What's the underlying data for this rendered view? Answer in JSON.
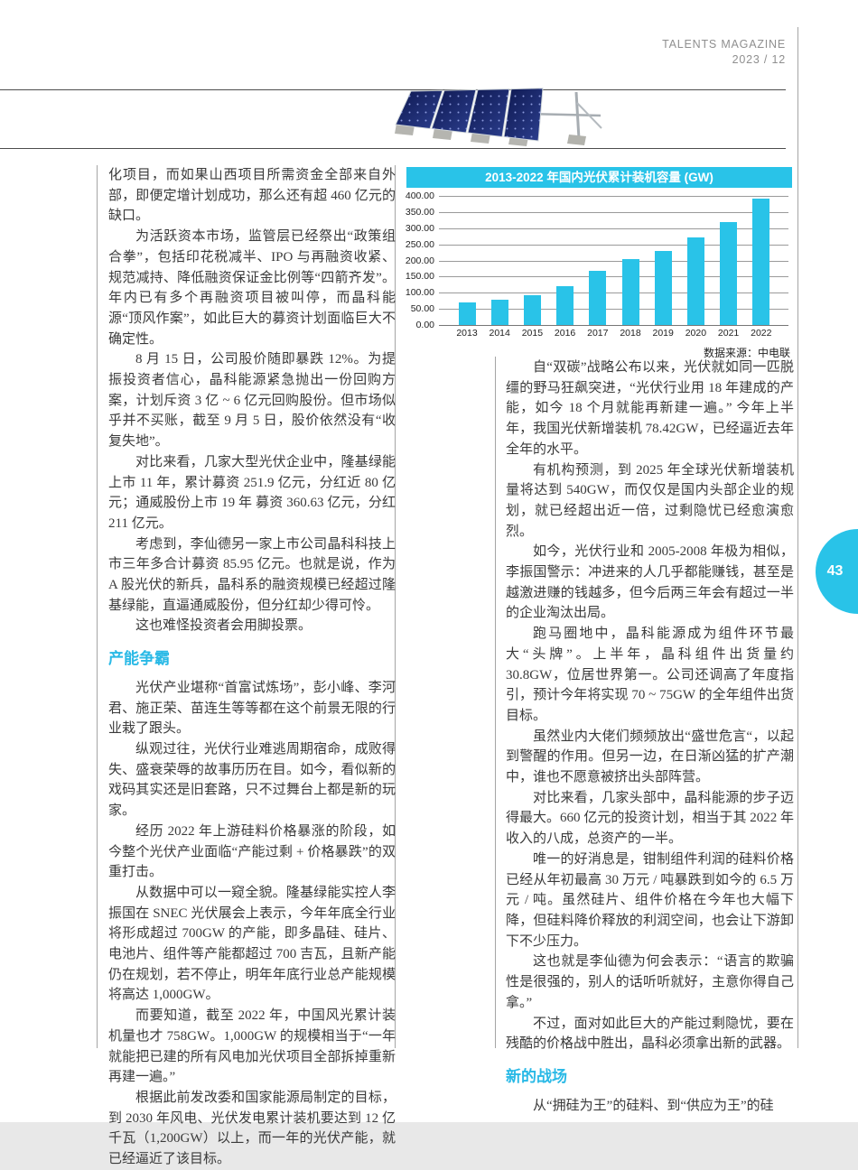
{
  "page": {
    "number": "43"
  },
  "header": {
    "magazine": "TALENTS MAGAZINE",
    "issue": "2023 / 12"
  },
  "accent_color": "#29c3e8",
  "chart_data": {
    "type": "bar",
    "title": "2013-2022 年国内光伏累计装机容量 (GW)",
    "source": "数据来源：中电联",
    "categories": [
      "2013",
      "2014",
      "2015",
      "2016",
      "2017",
      "2018",
      "2019",
      "2020",
      "2021",
      "2022"
    ],
    "values": [
      70,
      78,
      92,
      120,
      168,
      204,
      230,
      272,
      318,
      392
    ],
    "ylim": [
      0,
      400
    ],
    "ytick_labels": [
      "400.00",
      "350.00",
      "300.00",
      "250.00",
      "200.00",
      "150.00",
      "100.00",
      "50.00",
      "0.00"
    ],
    "grid": true,
    "legend": "none",
    "bar_color": "#29c3e8",
    "xlabel": "",
    "ylabel": ""
  },
  "left_column": {
    "section_heading": "产能争霸",
    "paragraphs": [
      "化项目，而如果山西项目所需资金全部来自外部，即便定增计划成功，那么还有超 460 亿元的缺口。",
      "为活跃资本市场，监管层已经祭出“政策组合拳”，包括印花税减半、IPO 与再融资收紧、规范减持、降低融资保证金比例等“四箭齐发”。年内已有多个再融资项目被叫停，而晶科能源“顶风作案”，如此巨大的募资计划面临巨大不确定性。",
      "8 月 15 日，公司股价随即暴跌 12%。为提振投资者信心，晶科能源紧急抛出一份回购方案，计划斥资 3 亿 ~ 6 亿元回购股份。但市场似乎并不买账，截至 9 月 5 日，股价依然没有“收复失地”。",
      "对比来看，几家大型光伏企业中，隆基绿能上市 11 年，累计募资 251.9 亿元，分红近 80 亿元；通威股份上市 19 年 募资 360.63 亿元，分红 211 亿元。",
      "考虑到，李仙德另一家上市公司晶科科技上市三年多合计募资 85.95 亿元。也就是说，作为 A 股光伏的新兵，晶科系的融资规模已经超过隆基绿能，直逼通威股份，但分红却少得可怜。",
      "这也难怪投资者会用脚投票。",
      "光伏产业堪称“首富试炼场”，彭小峰、李河君、施正荣、苗连生等等都在这个前景无限的行业栽了跟头。",
      "纵观过往，光伏行业难逃周期宿命，成败得失、盛衰荣辱的故事历历在目。如今，看似新的戏码其实还是旧套路，只不过舞台上都是新的玩家。",
      "经历 2022 年上游硅料价格暴涨的阶段，如今整个光伏产业面临“产能过剩 + 价格暴跌”的双重打击。",
      "从数据中可以一窥全貌。隆基绿能实控人李振国在 SNEC 光伏展会上表示，今年年底全行业将形成超过 700GW 的产能，即多晶硅、硅片、电池片、组件等产能都超过 700 吉瓦，且新产能仍在规划，若不停止，明年年底行业总产能规模将高达 1,000GW。",
      "而要知道，截至 2022 年，中国风光累计装机量也才 758GW。1,000GW 的规模相当于“一年就能把已建的所有风电加光伏项目全部拆掉重新再建一遍。”",
      "根据此前发改委和国家能源局制定的目标，到 2030 年风电、光伏发电累计装机要达到 12 亿千瓦（1,200GW）以上，而一年的光伏产能，就已经逼近了该目标。"
    ]
  },
  "right_column": {
    "section_heading": "新的战场",
    "paragraphs": [
      "自“双碳”战略公布以来，光伏就如同一匹脱缰的野马狂飙突进，“光伏行业用 18 年建成的产能，如今 18 个月就能再新建一遍。” 今年上半年，我国光伏新增装机 78.42GW，已经逼近去年全年的水平。",
      "有机构预测，到 2025 年全球光伏新增装机量将达到 540GW，而仅仅是国内头部企业的规划，就已经超出近一倍，过剩隐忧已经愈演愈烈。",
      "如今，光伏行业和 2005-2008 年极为相似，李振国警示：冲进来的人几乎都能赚钱，甚至是越激进赚的钱越多，但今后两三年会有超过一半的企业淘汰出局。",
      "跑马圈地中，晶科能源成为组件环节最大“头牌”。上半年，晶科组件出货量约 30.8GW，位居世界第一。公司还调高了年度指引，预计今年将实现 70 ~ 75GW 的全年组件出货目标。",
      "虽然业内大佬们频频放出“盛世危言“，以起到警醒的作用。但另一边，在日渐凶猛的扩产潮中，谁也不愿意被挤出头部阵营。",
      "对比来看，几家头部中，晶科能源的步子迈得最大。660 亿元的投资计划，相当于其 2022 年收入的八成，总资产的一半。",
      "唯一的好消息是，钳制组件利润的硅料价格已经从年初最高 30 万元 / 吨暴跌到如今的 6.5 万元 / 吨。虽然硅片、组件价格在今年也大幅下降，但硅料降价释放的利润空间，也会让下游卸下不少压力。",
      "这也就是李仙德为何会表示：“语言的欺骗性是很强的，别人的话听听就好，主意你得自己拿。”",
      "不过，面对如此巨大的产能过剩隐忧，要在残酷的价格战中胜出，晶科必须拿出新的武器。",
      "从“拥硅为王”的硅料、到“供应为王”的硅"
    ]
  }
}
